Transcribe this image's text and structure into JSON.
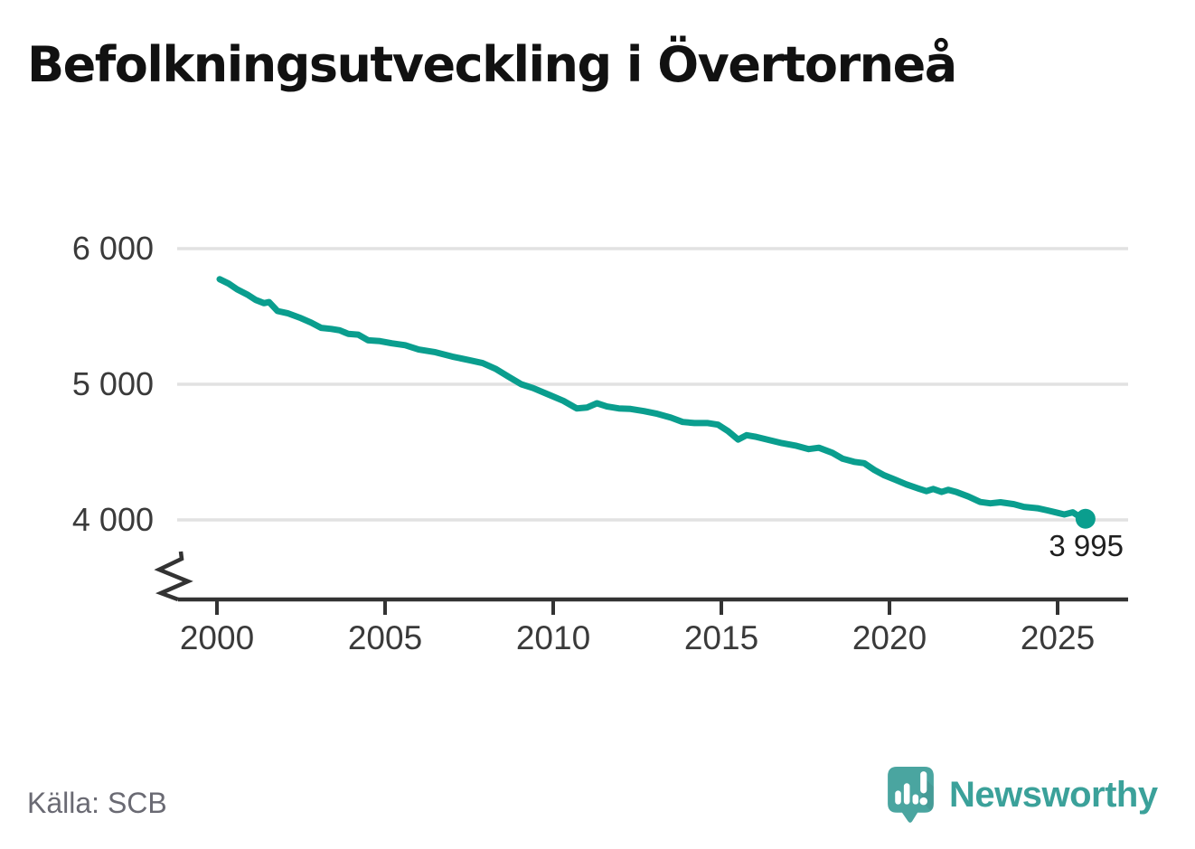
{
  "header": {
    "title": "Befolkningsutveckling i Övertorneå"
  },
  "chart_data": {
    "type": "line",
    "title": "Befolkningsutveckling i Övertorneå",
    "xlabel": "",
    "ylabel": "",
    "grid": "horizontal-only",
    "y_axis_break": true,
    "x_ticks": [
      {
        "value": 2000,
        "label": "2000"
      },
      {
        "value": 2005,
        "label": "2005"
      },
      {
        "value": 2010,
        "label": "2010"
      },
      {
        "value": 2015,
        "label": "2015"
      },
      {
        "value": 2020,
        "label": "2020"
      },
      {
        "value": 2025,
        "label": "2025"
      }
    ],
    "y_ticks": [
      {
        "value": 6000,
        "label": "6 000"
      },
      {
        "value": 5000,
        "label": "5 000"
      },
      {
        "value": 4000,
        "label": "4 000"
      }
    ],
    "xlim": [
      1999.0,
      2027.1
    ],
    "ylim": [
      3880,
      6000
    ],
    "series": [
      {
        "name": "Befolkning",
        "color": "#0a9e8e",
        "points": [
          [
            2000.08,
            5775
          ],
          [
            2000.35,
            5742
          ],
          [
            2000.6,
            5700
          ],
          [
            2000.9,
            5662
          ],
          [
            2001.15,
            5622
          ],
          [
            2001.4,
            5598
          ],
          [
            2001.55,
            5606
          ],
          [
            2001.8,
            5540
          ],
          [
            2002.1,
            5524
          ],
          [
            2002.5,
            5487
          ],
          [
            2002.8,
            5455
          ],
          [
            2003.1,
            5416
          ],
          [
            2003.4,
            5408
          ],
          [
            2003.65,
            5398
          ],
          [
            2003.9,
            5372
          ],
          [
            2004.2,
            5366
          ],
          [
            2004.5,
            5324
          ],
          [
            2004.85,
            5318
          ],
          [
            2005.2,
            5302
          ],
          [
            2005.6,
            5288
          ],
          [
            2006.0,
            5256
          ],
          [
            2006.5,
            5236
          ],
          [
            2007.0,
            5204
          ],
          [
            2007.5,
            5178
          ],
          [
            2007.9,
            5156
          ],
          [
            2008.3,
            5112
          ],
          [
            2008.7,
            5052
          ],
          [
            2009.05,
            5000
          ],
          [
            2009.4,
            4972
          ],
          [
            2009.9,
            4920
          ],
          [
            2010.3,
            4878
          ],
          [
            2010.7,
            4822
          ],
          [
            2011.0,
            4828
          ],
          [
            2011.3,
            4860
          ],
          [
            2011.6,
            4836
          ],
          [
            2011.95,
            4822
          ],
          [
            2012.3,
            4818
          ],
          [
            2012.7,
            4802
          ],
          [
            2013.1,
            4782
          ],
          [
            2013.5,
            4754
          ],
          [
            2013.85,
            4722
          ],
          [
            2014.2,
            4714
          ],
          [
            2014.6,
            4714
          ],
          [
            2014.9,
            4702
          ],
          [
            2015.2,
            4655
          ],
          [
            2015.5,
            4592
          ],
          [
            2015.75,
            4625
          ],
          [
            2016.0,
            4614
          ],
          [
            2016.4,
            4590
          ],
          [
            2016.8,
            4566
          ],
          [
            2017.2,
            4548
          ],
          [
            2017.6,
            4522
          ],
          [
            2017.9,
            4532
          ],
          [
            2018.3,
            4495
          ],
          [
            2018.6,
            4452
          ],
          [
            2018.95,
            4428
          ],
          [
            2019.25,
            4418
          ],
          [
            2019.55,
            4368
          ],
          [
            2019.85,
            4328
          ],
          [
            2020.15,
            4298
          ],
          [
            2020.5,
            4262
          ],
          [
            2020.85,
            4232
          ],
          [
            2021.1,
            4212
          ],
          [
            2021.3,
            4228
          ],
          [
            2021.55,
            4206
          ],
          [
            2021.75,
            4222
          ],
          [
            2022.0,
            4205
          ],
          [
            2022.35,
            4172
          ],
          [
            2022.7,
            4132
          ],
          [
            2023.0,
            4122
          ],
          [
            2023.3,
            4130
          ],
          [
            2023.7,
            4116
          ],
          [
            2024.0,
            4096
          ],
          [
            2024.4,
            4086
          ],
          [
            2024.7,
            4070
          ],
          [
            2025.0,
            4052
          ],
          [
            2025.2,
            4040
          ],
          [
            2025.45,
            4056
          ],
          [
            2025.6,
            4032
          ],
          [
            2025.83,
            3995
          ]
        ]
      }
    ],
    "last_point": {
      "year": 2025.83,
      "value": 3995,
      "label": "3 995"
    }
  },
  "footer": {
    "source": "Källa: SCB",
    "brand": "Newsworthy"
  },
  "colors": {
    "line": "#0a9e8e",
    "grid": "#e2e2e2",
    "axis": "#333333",
    "title": "#111111",
    "tick_text": "#3a3a3a",
    "source_text": "#6a6a73",
    "brand_text": "#3ba19a",
    "logo_fill": "#4aa5a0"
  }
}
